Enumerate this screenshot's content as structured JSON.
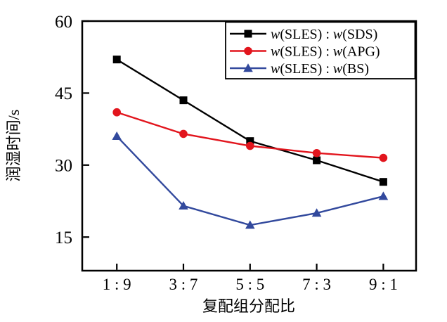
{
  "chart_data": {
    "type": "line",
    "title": "",
    "categories": [
      "1 : 9",
      "3 : 7",
      "5 : 5",
      "7 : 3",
      "9 : 1"
    ],
    "series": [
      {
        "name": "w(SLES) : w(SDS)",
        "marker": "square",
        "color": "#000000",
        "values": [
          52,
          43.5,
          35,
          31,
          26.5
        ]
      },
      {
        "name": "w(SLES) : w(APG)",
        "marker": "circle",
        "color": "#e2151d",
        "values": [
          41,
          36.5,
          34,
          32.5,
          31.5
        ]
      },
      {
        "name": "w(SLES) : w(BS)",
        "marker": "triangle",
        "color": "#32499d",
        "values": [
          36,
          21.5,
          17.5,
          20,
          23.5
        ]
      }
    ],
    "xlabel": "复配组分配比",
    "ylabel": "润湿时间/s",
    "ylim": [
      8,
      60
    ],
    "yticks": [
      15,
      30,
      45,
      60
    ],
    "grid": false,
    "legend_position": "top-right",
    "frame_color": "#000000",
    "background_color": "#ffffff"
  }
}
